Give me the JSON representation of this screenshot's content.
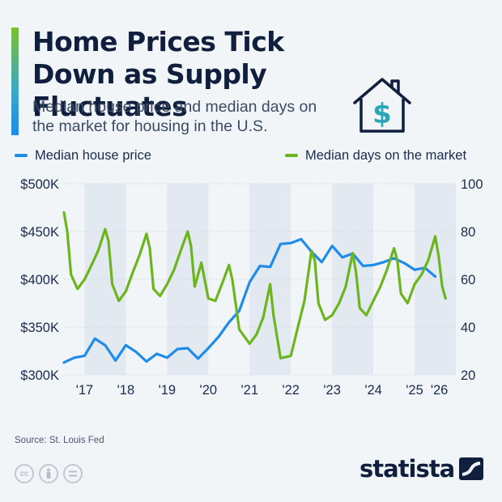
{
  "header": {
    "title": "Home Prices Tick Down as Supply Fluctuates",
    "subtitle": "Median house price and median days on the market for housing in the U.S."
  },
  "icons": {
    "header": "house-dollar-icon",
    "brand": "statista-logo-icon",
    "license": [
      "cc-icon",
      "by-icon",
      "nd-icon"
    ]
  },
  "legend": {
    "price_label": "Median house price",
    "days_label": "Median days on the market"
  },
  "colors": {
    "price": "#1e8ce8",
    "days": "#6cb51f",
    "band": "#e3e9f1",
    "text": "#1a2b4c"
  },
  "footer": {
    "source": "Source: St. Louis Fed",
    "brand": "statista"
  },
  "chart_data": {
    "type": "line",
    "x_axis": {
      "tick_labels": [
        "'17",
        "'18",
        "'19",
        "'20",
        "'21",
        "'22",
        "'23",
        "'24",
        "'25",
        "'26"
      ],
      "tick_positions": [
        2017.0,
        2018.0,
        2019.0,
        2020.0,
        2021.0,
        2022.0,
        2023.0,
        2024.0,
        2025.0,
        2025.6
      ],
      "range": [
        2016.5,
        2026.0
      ],
      "shaded_years": [
        2017.5,
        2019.5,
        2021.5,
        2023.5,
        2025.5
      ]
    },
    "y_left": {
      "label": "Median house price",
      "range": [
        300000,
        500000
      ],
      "ticks": [
        300000,
        350000,
        400000,
        450000,
        500000
      ],
      "tick_labels": [
        "$300K",
        "$350K",
        "$400K",
        "$450K",
        "$500K"
      ]
    },
    "y_right": {
      "label": "Median days on the market",
      "range": [
        20,
        100
      ],
      "ticks": [
        20,
        40,
        60,
        80,
        100
      ],
      "tick_labels": [
        "20",
        "40",
        "60",
        "80",
        "100"
      ]
    },
    "grid": true,
    "series": [
      {
        "name": "Median house price",
        "axis": "left",
        "points": [
          [
            2016.5,
            313000
          ],
          [
            2016.75,
            318000
          ],
          [
            2017.0,
            320000
          ],
          [
            2017.25,
            338000
          ],
          [
            2017.5,
            331000
          ],
          [
            2017.75,
            315000
          ],
          [
            2018.0,
            331000
          ],
          [
            2018.25,
            324000
          ],
          [
            2018.5,
            314000
          ],
          [
            2018.75,
            322000
          ],
          [
            2019.0,
            318000
          ],
          [
            2019.25,
            327000
          ],
          [
            2019.5,
            328000
          ],
          [
            2019.75,
            317000
          ],
          [
            2020.0,
            328000
          ],
          [
            2020.25,
            340000
          ],
          [
            2020.5,
            355000
          ],
          [
            2020.75,
            367000
          ],
          [
            2021.0,
            397000
          ],
          [
            2021.25,
            414000
          ],
          [
            2021.5,
            413000
          ],
          [
            2021.75,
            437000
          ],
          [
            2022.0,
            438000
          ],
          [
            2022.25,
            442000
          ],
          [
            2022.5,
            429000
          ],
          [
            2022.75,
            418000
          ],
          [
            2023.0,
            435000
          ],
          [
            2023.25,
            423000
          ],
          [
            2023.5,
            427000
          ],
          [
            2023.75,
            414000
          ],
          [
            2024.0,
            415000
          ],
          [
            2024.25,
            418000
          ],
          [
            2024.5,
            422000
          ],
          [
            2024.75,
            417000
          ],
          [
            2025.0,
            410000
          ],
          [
            2025.25,
            412000
          ],
          [
            2025.5,
            403000
          ]
        ]
      },
      {
        "name": "Median days on the market",
        "axis": "right",
        "points": [
          [
            2016.5,
            88
          ],
          [
            2016.58,
            80
          ],
          [
            2016.67,
            62
          ],
          [
            2016.83,
            56
          ],
          [
            2017.0,
            60
          ],
          [
            2017.17,
            66
          ],
          [
            2017.33,
            72
          ],
          [
            2017.5,
            81
          ],
          [
            2017.58,
            76
          ],
          [
            2017.67,
            58
          ],
          [
            2017.83,
            51
          ],
          [
            2018.0,
            55
          ],
          [
            2018.17,
            63
          ],
          [
            2018.33,
            70
          ],
          [
            2018.5,
            79
          ],
          [
            2018.58,
            73
          ],
          [
            2018.67,
            56
          ],
          [
            2018.83,
            53
          ],
          [
            2019.0,
            58
          ],
          [
            2019.17,
            64
          ],
          [
            2019.33,
            72
          ],
          [
            2019.5,
            80
          ],
          [
            2019.58,
            74
          ],
          [
            2019.67,
            57
          ],
          [
            2019.83,
            67
          ],
          [
            2020.0,
            52
          ],
          [
            2020.17,
            51
          ],
          [
            2020.33,
            58
          ],
          [
            2020.5,
            66
          ],
          [
            2020.58,
            60
          ],
          [
            2020.75,
            39
          ],
          [
            2021.0,
            33
          ],
          [
            2021.17,
            37
          ],
          [
            2021.33,
            44
          ],
          [
            2021.5,
            58
          ],
          [
            2021.58,
            45
          ],
          [
            2021.75,
            27
          ],
          [
            2022.0,
            28
          ],
          [
            2022.17,
            40
          ],
          [
            2022.33,
            51
          ],
          [
            2022.5,
            72
          ],
          [
            2022.58,
            68
          ],
          [
            2022.67,
            50
          ],
          [
            2022.83,
            43
          ],
          [
            2023.0,
            45
          ],
          [
            2023.17,
            50
          ],
          [
            2023.33,
            57
          ],
          [
            2023.5,
            71
          ],
          [
            2023.58,
            63
          ],
          [
            2023.67,
            48
          ],
          [
            2023.83,
            45
          ],
          [
            2024.0,
            51
          ],
          [
            2024.17,
            57
          ],
          [
            2024.33,
            64
          ],
          [
            2024.5,
            73
          ],
          [
            2024.58,
            68
          ],
          [
            2024.67,
            54
          ],
          [
            2024.83,
            50
          ],
          [
            2025.0,
            58
          ],
          [
            2025.17,
            62
          ],
          [
            2025.33,
            68
          ],
          [
            2025.5,
            78
          ],
          [
            2025.58,
            70
          ],
          [
            2025.67,
            57
          ],
          [
            2025.75,
            52
          ]
        ]
      }
    ]
  }
}
